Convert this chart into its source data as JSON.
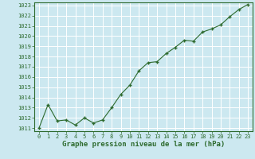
{
  "x": [
    0,
    1,
    2,
    3,
    4,
    5,
    6,
    7,
    8,
    9,
    10,
    11,
    12,
    13,
    14,
    15,
    16,
    17,
    18,
    19,
    20,
    21,
    22,
    23
  ],
  "y": [
    1011.0,
    1013.3,
    1011.7,
    1011.8,
    1011.3,
    1012.0,
    1011.5,
    1011.8,
    1013.0,
    1014.3,
    1015.2,
    1016.6,
    1017.4,
    1017.5,
    1018.3,
    1018.9,
    1019.6,
    1019.5,
    1020.4,
    1020.7,
    1021.1,
    1021.9,
    1022.6,
    1023.1
  ],
  "line_color": "#2d6a2d",
  "marker_color": "#2d6a2d",
  "bg_color": "#cce8f0",
  "grid_color": "#ffffff",
  "xlabel": "Graphe pression niveau de la mer (hPa)",
  "ylim_min": 1011,
  "ylim_max": 1023,
  "ytick_step": 1,
  "xtick_labels": [
    "0",
    "1",
    "2",
    "3",
    "4",
    "5",
    "6",
    "7",
    "8",
    "9",
    "10",
    "11",
    "12",
    "13",
    "14",
    "15",
    "16",
    "17",
    "18",
    "19",
    "20",
    "21",
    "22",
    "23"
  ],
  "xlabel_fontsize": 6.5,
  "tick_fontsize": 5.0,
  "tick_color": "#2d6a2d"
}
